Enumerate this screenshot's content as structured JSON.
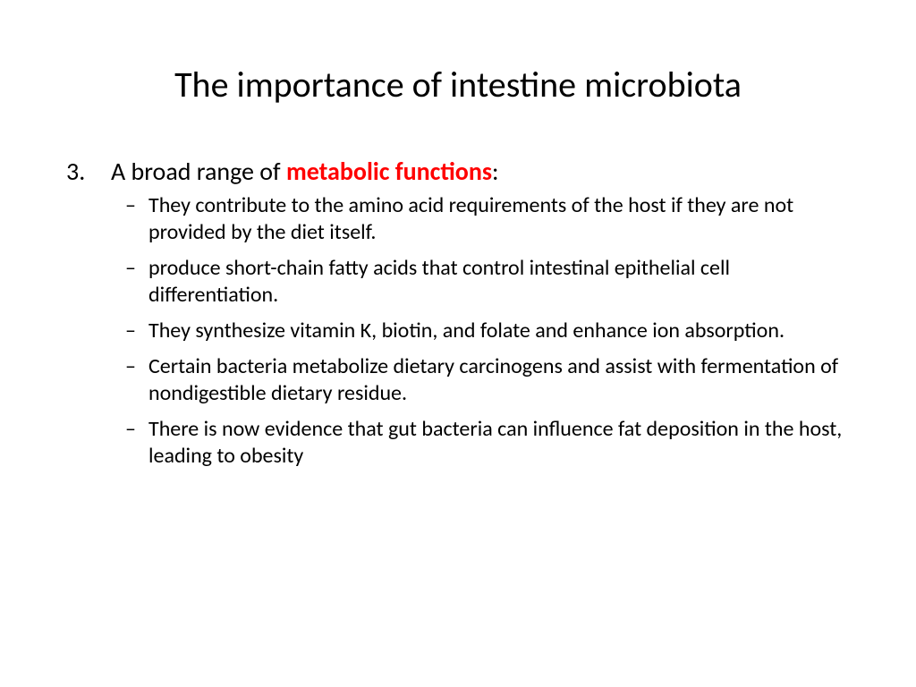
{
  "slide": {
    "title": "The importance of intestine microbiota",
    "title_fontsize": 40,
    "title_color": "#000000",
    "background_color": "#ffffff",
    "body_fontsize_main": 28,
    "body_fontsize_sub": 24,
    "emphasis_color": "#ff0000",
    "emphasis_bold": true,
    "text_color": "#000000",
    "numbered_item": {
      "number": "3.",
      "prefix_text": "A broad range of ",
      "emphasis_text": "metabolic functions",
      "suffix_text": ":"
    },
    "sub_items": [
      "They contribute to the amino acid requirements of the host if they are not provided by the diet itself.",
      "produce short-chain fatty acids that control intestinal epithelial cell differentiation.",
      "They synthesize vitamin K, biotin, and folate and enhance ion absorption.",
      "Certain bacteria metabolize dietary carcinogens and assist with fermentation of nondigestible dietary residue.",
      "There is now evidence that gut bacteria can influence fat deposition in the host, leading to obesity"
    ],
    "sub_bullet_glyph": "–"
  }
}
